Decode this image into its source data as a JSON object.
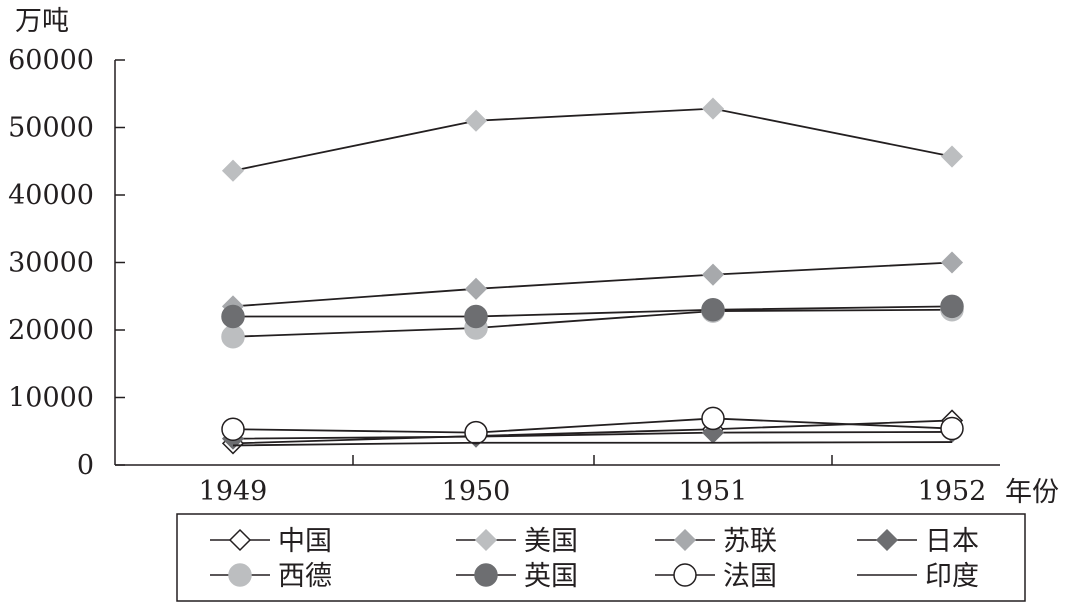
{
  "chart_data": {
    "type": "line",
    "ylabel": "万吨",
    "xlabel": "年份",
    "categories": [
      "1949",
      "1950",
      "1951",
      "1952"
    ],
    "ylim": [
      0,
      60000
    ],
    "yticks": [
      0,
      10000,
      20000,
      30000,
      40000,
      50000,
      60000
    ],
    "grid": false,
    "legend_position": "bottom",
    "series": [
      {
        "name": "中国",
        "marker": "diamond-open",
        "color": "#231f20",
        "values": [
          3200,
          4300,
          5300,
          6600
        ]
      },
      {
        "name": "美国",
        "marker": "diamond",
        "color": "#bcbec0",
        "values": [
          43600,
          51000,
          52800,
          45700
        ]
      },
      {
        "name": "苏联",
        "marker": "diamond",
        "color": "#a7a9ac",
        "values": [
          23500,
          26100,
          28200,
          30000
        ]
      },
      {
        "name": "日本",
        "marker": "diamond",
        "color": "#6d6e71",
        "values": [
          3900,
          4200,
          4800,
          4900
        ]
      },
      {
        "name": "西德",
        "marker": "circle",
        "color": "#bcbec0",
        "values": [
          19000,
          20300,
          22800,
          23000
        ]
      },
      {
        "name": "英国",
        "marker": "circle",
        "color": "#6d6e71",
        "values": [
          22000,
          22000,
          23000,
          23500
        ]
      },
      {
        "name": "法国",
        "marker": "circle-open",
        "color": "#231f20",
        "values": [
          5300,
          4800,
          6900,
          5400
        ]
      },
      {
        "name": "印度",
        "marker": "none",
        "color": "#231f20",
        "values": [
          2900,
          3300,
          3300,
          3400
        ]
      }
    ]
  }
}
